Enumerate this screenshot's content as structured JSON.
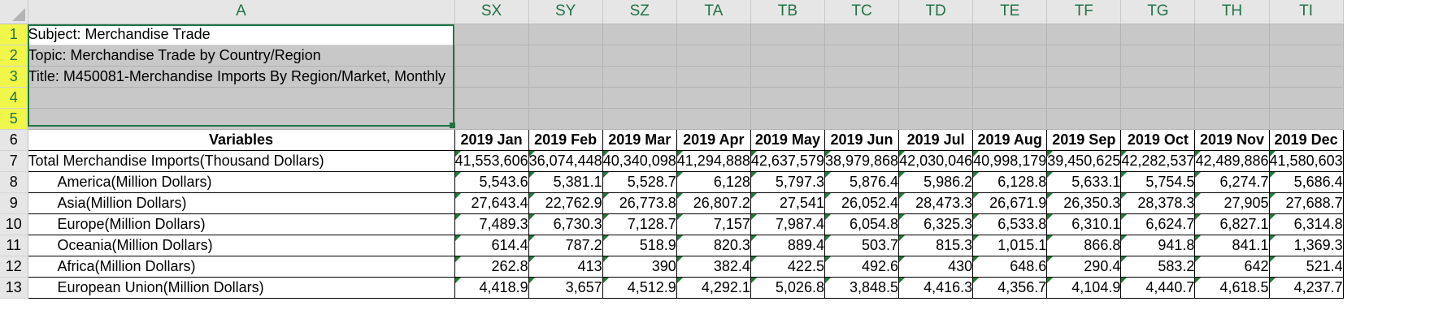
{
  "columns": [
    "A",
    "SX",
    "SY",
    "SZ",
    "TA",
    "TB",
    "TC",
    "TD",
    "TE",
    "TF",
    "TG",
    "TH",
    "TI"
  ],
  "row_numbers": [
    "1",
    "2",
    "3",
    "4",
    "5",
    "6",
    "7",
    "8",
    "9",
    "10",
    "11",
    "12",
    "13"
  ],
  "meta": {
    "subject": "Subject: Merchandise Trade",
    "topic": "Topic: Merchandise Trade by Country/Region",
    "title": "Title: M450081-Merchandise Imports By Region/Market, Monthly"
  },
  "header": {
    "variables_label": "Variables",
    "months": [
      "2019 Jan",
      "2019 Feb",
      "2019 Mar",
      "2019 Apr",
      "2019 May",
      "2019 Jun",
      "2019 Jul",
      "2019 Aug",
      "2019 Sep",
      "2019 Oct",
      "2019 Nov",
      "2019 Dec"
    ]
  },
  "rows": [
    {
      "label": "Total Merchandise Imports(Thousand Dollars)",
      "indent": false,
      "values": [
        "41,553,606",
        "36,074,448",
        "40,340,098",
        "41,294,888",
        "42,637,579",
        "38,979,868",
        "42,030,046",
        "40,998,179",
        "39,450,625",
        "42,282,537",
        "42,489,886",
        "41,580,603"
      ]
    },
    {
      "label": "America(Million Dollars)",
      "indent": true,
      "values": [
        "5,543.6",
        "5,381.1",
        "5,528.7",
        "6,128",
        "5,797.3",
        "5,876.4",
        "5,986.2",
        "6,128.8",
        "5,633.1",
        "5,754.5",
        "6,274.7",
        "5,686.4"
      ]
    },
    {
      "label": "Asia(Million Dollars)",
      "indent": true,
      "values": [
        "27,643.4",
        "22,762.9",
        "26,773.8",
        "26,807.2",
        "27,541",
        "26,052.4",
        "28,473.3",
        "26,671.9",
        "26,350.3",
        "28,378.3",
        "27,905",
        "27,688.7"
      ]
    },
    {
      "label": "Europe(Million Dollars)",
      "indent": true,
      "values": [
        "7,489.3",
        "6,730.3",
        "7,128.7",
        "7,157",
        "7,987.4",
        "6,054.8",
        "6,325.3",
        "6,533.8",
        "6,310.1",
        "6,624.7",
        "6,827.1",
        "6,314.8"
      ]
    },
    {
      "label": "Oceania(Million Dollars)",
      "indent": true,
      "values": [
        "614.4",
        "787.2",
        "518.9",
        "820.3",
        "889.4",
        "503.7",
        "815.3",
        "1,015.1",
        "866.8",
        "941.8",
        "841.1",
        "1,369.3"
      ]
    },
    {
      "label": "Africa(Million Dollars)",
      "indent": true,
      "values": [
        "262.8",
        "413",
        "390",
        "382.4",
        "422.5",
        "492.6",
        "430",
        "648.6",
        "290.4",
        "583.2",
        "642",
        "521.4"
      ]
    },
    {
      "label": "European Union(Million Dollars)",
      "indent": true,
      "values": [
        "4,418.9",
        "3,657",
        "4,512.9",
        "4,292.1",
        "5,026.8",
        "3,848.5",
        "4,416.3",
        "4,356.7",
        "4,104.9",
        "4,440.7",
        "4,618.5",
        "4,237.7"
      ]
    }
  ]
}
